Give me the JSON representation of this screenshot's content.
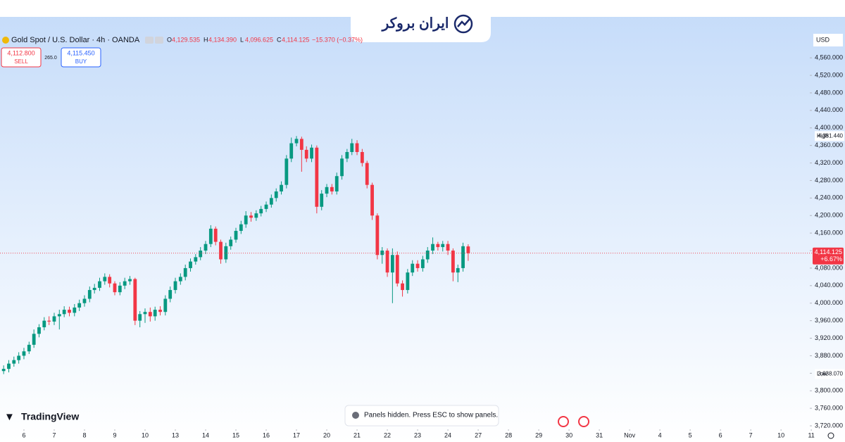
{
  "logo": "ایران بروکر",
  "branding": "TradingView",
  "notice": "Panels hidden. Press ESC to show panels.",
  "chart_data": {
    "type": "candlestick",
    "title": "Gold Spot / U.S. Dollar · 4h · OANDA",
    "ohlc": [
      {
        "key": "O",
        "label": "4,129.535"
      },
      {
        "key": "H",
        "label": "4,134.390"
      },
      {
        "key": "L",
        "label": "4,096.625"
      },
      {
        "key": "C",
        "label": "4,114.125"
      }
    ],
    "change": "−15.370 (−0.37%)",
    "sell": {
      "price": "4,112.800",
      "text": "SELL"
    },
    "spread": "265.0",
    "buy": {
      "price": "4,115.450",
      "text": "BUY"
    },
    "currency": "USD",
    "up_color": "#089981",
    "down_color": "#f23645",
    "grid": false,
    "xlim": [
      -0.79,
      25.95
    ],
    "xticks": [
      {
        "value": 0,
        "label": "6"
      },
      {
        "value": 1,
        "label": "7"
      },
      {
        "value": 2,
        "label": "8"
      },
      {
        "value": 3,
        "label": "9"
      },
      {
        "value": 4,
        "label": "10"
      },
      {
        "value": 5,
        "label": "13"
      },
      {
        "value": 6,
        "label": "14"
      },
      {
        "value": 7,
        "label": "15"
      },
      {
        "value": 8,
        "label": "16"
      },
      {
        "value": 9,
        "label": "17"
      },
      {
        "value": 10,
        "label": "20"
      },
      {
        "value": 11,
        "label": "21"
      },
      {
        "value": 12,
        "label": "22"
      },
      {
        "value": 13,
        "label": "23"
      },
      {
        "value": 14,
        "label": "24"
      },
      {
        "value": 15,
        "label": "27"
      },
      {
        "value": 16,
        "label": "28"
      },
      {
        "value": 17,
        "label": "29"
      },
      {
        "value": 18,
        "label": "30"
      },
      {
        "value": 19,
        "label": "31"
      },
      {
        "value": 20,
        "label": "Nov"
      },
      {
        "value": 21,
        "label": "4"
      },
      {
        "value": 22,
        "label": "5"
      },
      {
        "value": 23,
        "label": "6"
      },
      {
        "value": 24,
        "label": "7"
      },
      {
        "value": 25,
        "label": "10"
      },
      {
        "value": 26,
        "label": "11"
      }
    ],
    "ylim": [
      3712,
      4692
    ],
    "yticks": [
      {
        "value": 3720,
        "label": "3,720.000"
      },
      {
        "value": 3760,
        "label": "3,760.000"
      },
      {
        "value": 3800,
        "label": "3,800.000"
      },
      {
        "value": 3840,
        "label": "3,840.000"
      },
      {
        "value": 3880,
        "label": "3,880.000"
      },
      {
        "value": 3920,
        "label": "3,920.000"
      },
      {
        "value": 3960,
        "label": "3,960.000"
      },
      {
        "value": 4000,
        "label": "4,000.000"
      },
      {
        "value": 4040,
        "label": "4,040.000"
      },
      {
        "value": 4080,
        "label": "4,080.000"
      },
      {
        "value": 4120,
        "label": "4,120.000"
      },
      {
        "value": 4160,
        "label": "4,160.000"
      },
      {
        "value": 4200,
        "label": "4,200.000"
      },
      {
        "value": 4240,
        "label": "4,240.000"
      },
      {
        "value": 4280,
        "label": "4,280.000"
      },
      {
        "value": 4320,
        "label": "4,320.000"
      },
      {
        "value": 4360,
        "label": "4,360.000"
      },
      {
        "value": 4400,
        "label": "4,400.000"
      },
      {
        "value": 4440,
        "label": "4,440.000"
      },
      {
        "value": 4480,
        "label": "4,480.000"
      },
      {
        "value": 4520,
        "label": "4,520.000"
      },
      {
        "value": 4560,
        "label": "4,560.000"
      }
    ],
    "high_marker": {
      "name": "High",
      "value": 4381.44,
      "label": "4,381.440"
    },
    "low_marker": {
      "name": "Low",
      "value": 3838.07,
      "label": "3,838.070"
    },
    "last_price": {
      "value": 4114.125,
      "label": "4,114.125",
      "change": "+6.67%"
    },
    "x": [
      -0.67,
      -0.5,
      -0.33,
      -0.17,
      0,
      0.17,
      0.33,
      0.5,
      0.67,
      0.83,
      1,
      1.17,
      1.33,
      1.5,
      1.67,
      1.83,
      2,
      2.17,
      2.33,
      2.5,
      2.67,
      2.83,
      3,
      3.17,
      3.33,
      3.5,
      3.67,
      3.83,
      4,
      4.17,
      4.33,
      4.5,
      4.67,
      4.83,
      5,
      5.17,
      5.33,
      5.5,
      5.67,
      5.83,
      6,
      6.17,
      6.33,
      6.5,
      6.67,
      6.83,
      7,
      7.17,
      7.33,
      7.5,
      7.67,
      7.83,
      8,
      8.17,
      8.33,
      8.5,
      8.67,
      8.83,
      9,
      9.17,
      9.33,
      9.5,
      9.67,
      9.83,
      10,
      10.17,
      10.33,
      10.5,
      10.67,
      10.83,
      11,
      11.17,
      11.33,
      11.5,
      11.67,
      11.83,
      12,
      12.17,
      12.33,
      12.5,
      12.67,
      12.83,
      13,
      13.17,
      13.33,
      13.5,
      13.67,
      13.83,
      14,
      14.17,
      14.33,
      14.5,
      14.67
    ],
    "open": [
      3845,
      3850,
      3862,
      3870,
      3880,
      3890,
      3905,
      3930,
      3945,
      3960,
      3958,
      3970,
      3975,
      3985,
      3978,
      3990,
      4000,
      4010,
      4030,
      4035,
      4050,
      4060,
      4045,
      4025,
      4040,
      4050,
      4055,
      3960,
      3975,
      3980,
      3970,
      3985,
      3980,
      4010,
      4030,
      4050,
      4060,
      4080,
      4095,
      4105,
      4120,
      4135,
      4170,
      4140,
      4100,
      4130,
      4145,
      4165,
      4180,
      4200,
      4195,
      4205,
      4215,
      4225,
      4240,
      4255,
      4270,
      4330,
      4365,
      4375,
      4350,
      4330,
      4355,
      4220,
      4250,
      4265,
      4255,
      4290,
      4330,
      4345,
      4365,
      4345,
      4320,
      4270,
      4200,
      4110,
      4120,
      4070,
      4110,
      4045,
      4030,
      4070,
      4090,
      4080,
      4100,
      4120,
      4135,
      4128,
      4135,
      4120,
      4070,
      4080,
      4129.535
    ],
    "high": [
      3858,
      3870,
      3878,
      3888,
      3898,
      3912,
      3940,
      3952,
      3968,
      3970,
      3978,
      3985,
      3993,
      3992,
      3998,
      4008,
      4018,
      4038,
      4044,
      4058,
      4068,
      4066,
      4050,
      4048,
      4058,
      4062,
      4058,
      3982,
      3988,
      3990,
      3992,
      3993,
      4018,
      4038,
      4058,
      4068,
      4088,
      4102,
      4112,
      4128,
      4142,
      4178,
      4175,
      4145,
      4138,
      4152,
      4172,
      4188,
      4210,
      4208,
      4212,
      4222,
      4232,
      4248,
      4262,
      4278,
      4338,
      4378,
      4381.44,
      4380,
      4358,
      4362,
      4360,
      4258,
      4272,
      4272,
      4298,
      4338,
      4352,
      4375,
      4372,
      4352,
      4325,
      4275,
      4205,
      4128,
      4125,
      4125,
      4118,
      4052,
      4078,
      4098,
      4098,
      4108,
      4128,
      4150,
      4140,
      4142,
      4142,
      4125,
      4088,
      4138,
      4134.39
    ],
    "low": [
      3838.07,
      3842,
      3855,
      3862,
      3872,
      3884,
      3898,
      3922,
      3938,
      3950,
      3950,
      3940,
      3968,
      3970,
      3970,
      3982,
      3992,
      4002,
      4022,
      4028,
      4042,
      4036,
      4018,
      4018,
      4032,
      4042,
      3950,
      3945,
      3955,
      3958,
      3960,
      3972,
      3972,
      4002,
      4022,
      4042,
      4052,
      4072,
      4088,
      4098,
      4112,
      4128,
      4132,
      4090,
      4092,
      4122,
      4138,
      4158,
      4172,
      4186,
      4188,
      4198,
      4208,
      4218,
      4232,
      4248,
      4262,
      4322,
      4358,
      4300,
      4322,
      4322,
      4205,
      4212,
      4242,
      4248,
      4248,
      4282,
      4322,
      4338,
      4338,
      4312,
      4262,
      4190,
      4100,
      4090,
      4060,
      4000,
      4038,
      4015,
      4022,
      4062,
      4072,
      4072,
      4092,
      4112,
      4120,
      4118,
      4110,
      4050,
      4048,
      4072,
      4096.625
    ],
    "close": [
      3850,
      3862,
      3870,
      3880,
      3890,
      3905,
      3930,
      3945,
      3960,
      3958,
      3970,
      3975,
      3985,
      3978,
      3990,
      4000,
      4010,
      4030,
      4035,
      4050,
      4060,
      4045,
      4025,
      4040,
      4050,
      4055,
      3960,
      3975,
      3980,
      3970,
      3985,
      3980,
      4010,
      4030,
      4050,
      4060,
      4080,
      4095,
      4105,
      4120,
      4135,
      4170,
      4140,
      4100,
      4130,
      4145,
      4165,
      4180,
      4200,
      4195,
      4205,
      4215,
      4225,
      4240,
      4255,
      4270,
      4330,
      4365,
      4375,
      4350,
      4330,
      4355,
      4220,
      4250,
      4265,
      4255,
      4290,
      4330,
      4345,
      4365,
      4345,
      4320,
      4270,
      4200,
      4110,
      4120,
      4070,
      4110,
      4045,
      4030,
      4070,
      4090,
      4080,
      4100,
      4120,
      4135,
      4128,
      4135,
      4120,
      4070,
      4080,
      4130,
      4114.125
    ]
  }
}
